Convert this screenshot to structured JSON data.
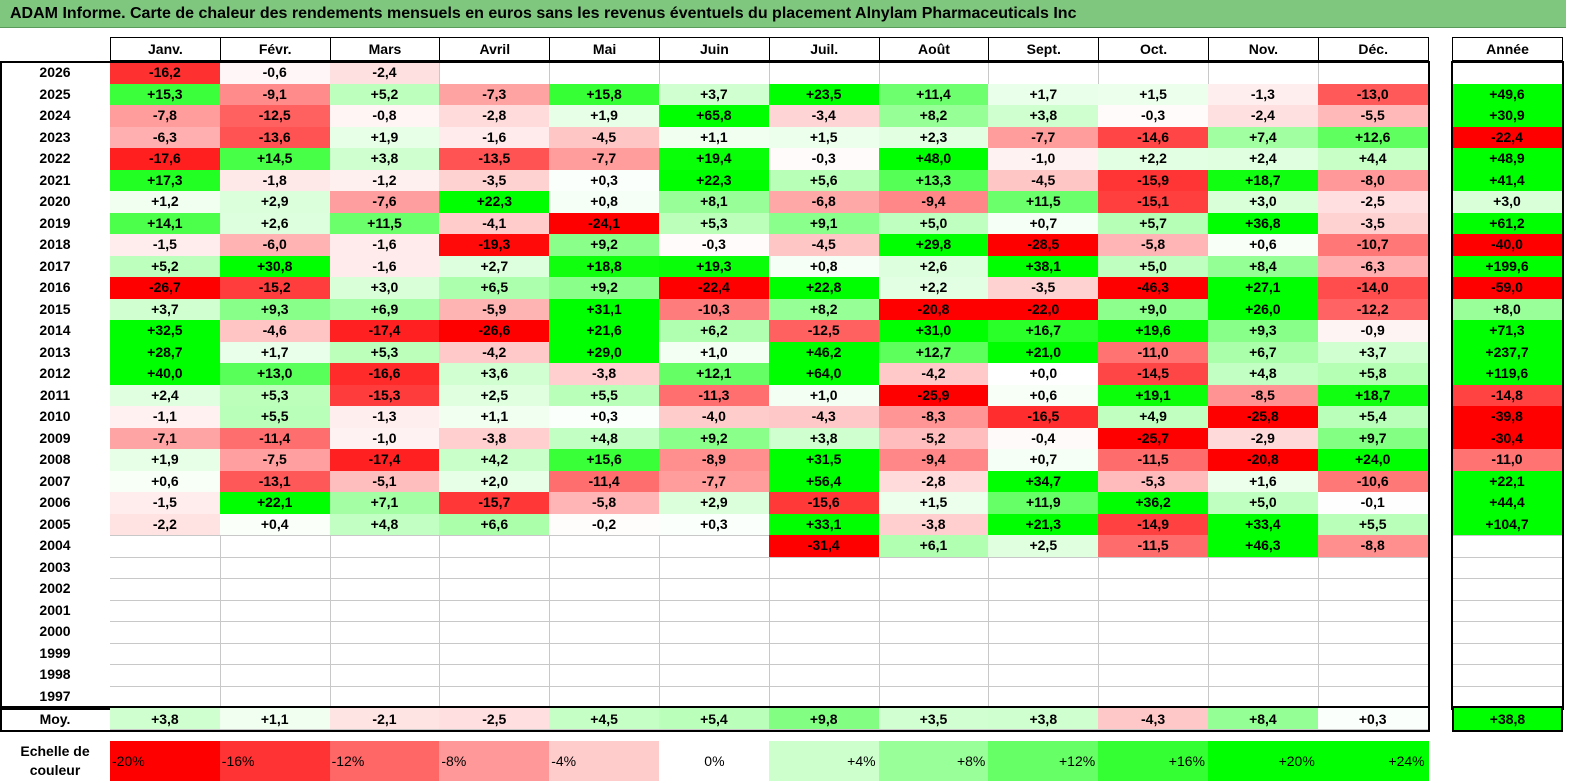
{
  "title": "ADAM Informe. Carte de chaleur des rendements mensuels en euros sans les revenus éventuels du placement Alnylam Pharmaceuticals Inc",
  "chart_data": {
    "type": "heatmap",
    "months": [
      "Janv.",
      "Févr.",
      "Mars",
      "Avril",
      "Mai",
      "Juin",
      "Juil.",
      "Août",
      "Sept.",
      "Oct.",
      "Nov.",
      "Déc."
    ],
    "year_header": "Année",
    "rows": [
      {
        "year": "2026",
        "values": [
          "-16,2",
          "-0,6",
          "-2,4",
          "",
          "",
          "",
          "",
          "",
          "",
          "",
          "",
          ""
        ],
        "annual": ""
      },
      {
        "year": "2025",
        "values": [
          "+15,3",
          "-9,1",
          "+5,2",
          "-7,3",
          "+15,8",
          "+3,7",
          "+23,5",
          "+11,4",
          "+1,7",
          "+1,5",
          "-1,3",
          "-13,0"
        ],
        "annual": "+49,6"
      },
      {
        "year": "2024",
        "values": [
          "-7,8",
          "-12,5",
          "-0,8",
          "-2,8",
          "+1,9",
          "+65,8",
          "-3,4",
          "+8,2",
          "+3,8",
          "-0,3",
          "-2,4",
          "-5,5"
        ],
        "annual": "+30,9"
      },
      {
        "year": "2023",
        "values": [
          "-6,3",
          "-13,6",
          "+1,9",
          "-1,6",
          "-4,5",
          "+1,1",
          "+1,5",
          "+2,3",
          "-7,7",
          "-14,6",
          "+7,4",
          "+12,6"
        ],
        "annual": "-22,4"
      },
      {
        "year": "2022",
        "values": [
          "-17,6",
          "+14,5",
          "+3,8",
          "-13,5",
          "-7,7",
          "+19,4",
          "-0,3",
          "+48,0",
          "-1,0",
          "+2,2",
          "+2,4",
          "+4,4"
        ],
        "annual": "+48,9"
      },
      {
        "year": "2021",
        "values": [
          "+17,3",
          "-1,8",
          "-1,2",
          "-3,5",
          "+0,3",
          "+22,3",
          "+5,6",
          "+13,3",
          "-4,5",
          "-15,9",
          "+18,7",
          "-8,0"
        ],
        "annual": "+41,4"
      },
      {
        "year": "2020",
        "values": [
          "+1,2",
          "+2,9",
          "-7,6",
          "+22,3",
          "+0,8",
          "+8,1",
          "-6,8",
          "-9,4",
          "+11,5",
          "-15,1",
          "+3,0",
          "-2,5"
        ],
        "annual": "+3,0"
      },
      {
        "year": "2019",
        "values": [
          "+14,1",
          "+2,6",
          "+11,5",
          "-4,1",
          "-24,1",
          "+5,3",
          "+9,1",
          "+5,0",
          "+0,7",
          "+5,7",
          "+36,8",
          "-3,5"
        ],
        "annual": "+61,2"
      },
      {
        "year": "2018",
        "values": [
          "-1,5",
          "-6,0",
          "-1,6",
          "-19,3",
          "+9,2",
          "-0,3",
          "-4,5",
          "+29,8",
          "-28,5",
          "-5,8",
          "+0,6",
          "-10,7"
        ],
        "annual": "-40,0"
      },
      {
        "year": "2017",
        "values": [
          "+5,2",
          "+30,8",
          "-1,6",
          "+2,7",
          "+18,8",
          "+19,3",
          "+0,8",
          "+2,6",
          "+38,1",
          "+5,0",
          "+8,4",
          "-6,3"
        ],
        "annual": "+199,6"
      },
      {
        "year": "2016",
        "values": [
          "-26,7",
          "-15,2",
          "+3,0",
          "+6,5",
          "+9,2",
          "-22,4",
          "+22,8",
          "+2,2",
          "-3,5",
          "-46,3",
          "+27,1",
          "-14,0"
        ],
        "annual": "-59,0"
      },
      {
        "year": "2015",
        "values": [
          "+3,7",
          "+9,3",
          "+6,9",
          "-5,9",
          "+31,1",
          "-10,3",
          "+8,2",
          "-20,8",
          "-22,0",
          "+9,0",
          "+26,0",
          "-12,2"
        ],
        "annual": "+8,0"
      },
      {
        "year": "2014",
        "values": [
          "+32,5",
          "-4,6",
          "-17,4",
          "-26,6",
          "+21,6",
          "+6,2",
          "-12,5",
          "+31,0",
          "+16,7",
          "+19,6",
          "+9,3",
          "-0,9"
        ],
        "annual": "+71,3"
      },
      {
        "year": "2013",
        "values": [
          "+28,7",
          "+1,7",
          "+5,3",
          "-4,2",
          "+29,0",
          "+1,0",
          "+46,2",
          "+12,7",
          "+21,0",
          "-11,0",
          "+6,7",
          "+3,7"
        ],
        "annual": "+237,7"
      },
      {
        "year": "2012",
        "values": [
          "+40,0",
          "+13,0",
          "-16,6",
          "+3,6",
          "-3,8",
          "+12,1",
          "+64,0",
          "-4,2",
          "+0,0",
          "-14,5",
          "+4,8",
          "+5,8"
        ],
        "annual": "+119,6"
      },
      {
        "year": "2011",
        "values": [
          "+2,4",
          "+5,3",
          "-15,3",
          "+2,5",
          "+5,5",
          "-11,3",
          "+1,0",
          "-25,9",
          "+0,6",
          "+19,1",
          "-8,5",
          "+18,7"
        ],
        "annual": "-14,8"
      },
      {
        "year": "2010",
        "values": [
          "-1,1",
          "+5,5",
          "-1,3",
          "+1,1",
          "+0,3",
          "-4,0",
          "-4,3",
          "-8,3",
          "-16,5",
          "+4,9",
          "-25,8",
          "+5,4"
        ],
        "annual": "-39,8"
      },
      {
        "year": "2009",
        "values": [
          "-7,1",
          "-11,4",
          "-1,0",
          "-3,8",
          "+4,8",
          "+9,2",
          "+3,8",
          "-5,2",
          "-0,4",
          "-25,7",
          "-2,9",
          "+9,7"
        ],
        "annual": "-30,4"
      },
      {
        "year": "2008",
        "values": [
          "+1,9",
          "-7,5",
          "-17,4",
          "+4,2",
          "+15,6",
          "-8,9",
          "+31,5",
          "-9,4",
          "+0,7",
          "-11,5",
          "-20,8",
          "+24,0"
        ],
        "annual": "-11,0"
      },
      {
        "year": "2007",
        "values": [
          "+0,6",
          "-13,1",
          "-5,1",
          "+2,0",
          "-11,4",
          "-7,7",
          "+56,4",
          "-2,8",
          "+34,7",
          "-5,3",
          "+1,6",
          "-10,6"
        ],
        "annual": "+22,1"
      },
      {
        "year": "2006",
        "values": [
          "-1,5",
          "+22,1",
          "+7,1",
          "-15,7",
          "-5,8",
          "+2,9",
          "-15,6",
          "+1,5",
          "+11,9",
          "+36,2",
          "+5,0",
          "-0,1"
        ],
        "annual": "+44,4"
      },
      {
        "year": "2005",
        "values": [
          "-2,2",
          "+0,4",
          "+4,8",
          "+6,6",
          "-0,2",
          "+0,3",
          "+33,1",
          "-3,8",
          "+21,3",
          "-14,9",
          "+33,4",
          "+5,5"
        ],
        "annual": "+104,7"
      },
      {
        "year": "2004",
        "values": [
          "",
          "",
          "",
          "",
          "",
          "",
          "-31,4",
          "+6,1",
          "+2,5",
          "-11,5",
          "+46,3",
          "-8,8"
        ],
        "annual": ""
      },
      {
        "year": "2003",
        "values": [
          "",
          "",
          "",
          "",
          "",
          "",
          "",
          "",
          "",
          "",
          "",
          ""
        ],
        "annual": ""
      },
      {
        "year": "2002",
        "values": [
          "",
          "",
          "",
          "",
          "",
          "",
          "",
          "",
          "",
          "",
          "",
          ""
        ],
        "annual": ""
      },
      {
        "year": "2001",
        "values": [
          "",
          "",
          "",
          "",
          "",
          "",
          "",
          "",
          "",
          "",
          "",
          ""
        ],
        "annual": ""
      },
      {
        "year": "2000",
        "values": [
          "",
          "",
          "",
          "",
          "",
          "",
          "",
          "",
          "",
          "",
          "",
          ""
        ],
        "annual": ""
      },
      {
        "year": "1999",
        "values": [
          "",
          "",
          "",
          "",
          "",
          "",
          "",
          "",
          "",
          "",
          "",
          ""
        ],
        "annual": ""
      },
      {
        "year": "1998",
        "values": [
          "",
          "",
          "",
          "",
          "",
          "",
          "",
          "",
          "",
          "",
          "",
          ""
        ],
        "annual": ""
      },
      {
        "year": "1997",
        "values": [
          "",
          "",
          "",
          "",
          "",
          "",
          "",
          "",
          "",
          "",
          "",
          ""
        ],
        "annual": ""
      }
    ],
    "average": {
      "label": "Moy.",
      "values": [
        "+3,8",
        "+1,1",
        "-2,1",
        "-2,5",
        "+4,5",
        "+5,4",
        "+9,8",
        "+3,5",
        "+3,8",
        "-4,3",
        "+8,4",
        "+0,3"
      ],
      "annual": "+38,8"
    },
    "color_scale": {
      "label": "Echelle de couleur",
      "steps": [
        "-20%",
        "-16%",
        "-12%",
        "-8%",
        "-4%",
        "0%",
        "+4%",
        "+8%",
        "+12%",
        "+16%",
        "+20%",
        "+24%"
      ]
    }
  }
}
